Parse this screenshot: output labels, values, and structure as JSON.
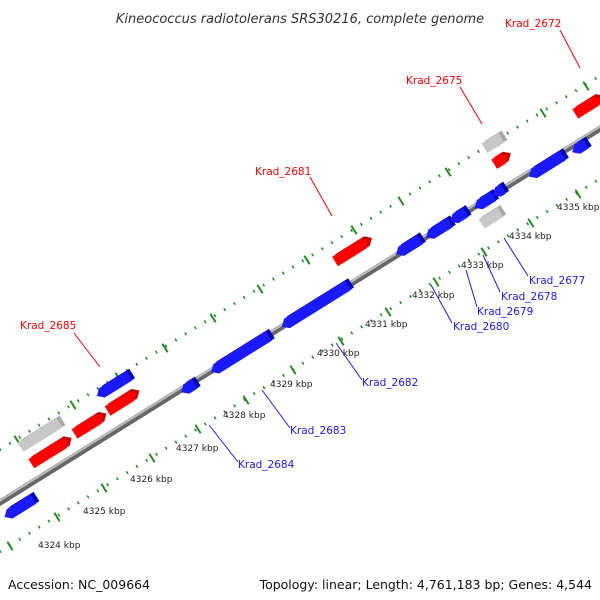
{
  "title": "Kineococcus radiotolerans SRS30216, complete genome",
  "footer": {
    "accession": "Accession: NC_009664",
    "summary": "Topology: linear; Length: 4,761,183 bp; Genes: 4,544"
  },
  "colors": {
    "forward": "#ff0000",
    "reverse": "#1a1aff",
    "other": "#c8c8c8",
    "backbone": "#888888",
    "ticks": "#1f8a1f"
  },
  "scale": {
    "unit": "kbp",
    "ticks": [
      {
        "value": 4324,
        "label": "4324 kbp"
      },
      {
        "value": 4325,
        "label": "4325 kbp"
      },
      {
        "value": 4326,
        "label": "4326 kbp"
      },
      {
        "value": 4327,
        "label": "4327 kbp"
      },
      {
        "value": 4328,
        "label": "4328 kbp"
      },
      {
        "value": 4329,
        "label": "4329 kbp"
      },
      {
        "value": 4330,
        "label": "4330 kbp"
      },
      {
        "value": 4331,
        "label": "4331 kbp"
      },
      {
        "value": 4332,
        "label": "4332 kbp"
      },
      {
        "value": 4333,
        "label": "4333 kbp"
      },
      {
        "value": 4334,
        "label": "4334 kbp"
      },
      {
        "value": 4335,
        "label": "4335 kbp"
      }
    ]
  },
  "labels": {
    "forward": [
      "Krad_2672",
      "Krad_2675",
      "Krad_2681",
      "Krad_2685"
    ],
    "reverse": [
      "Krad_2677",
      "Krad_2678",
      "Krad_2679",
      "Krad_2680",
      "Krad_2682",
      "Krad_2683",
      "Krad_2684"
    ]
  }
}
